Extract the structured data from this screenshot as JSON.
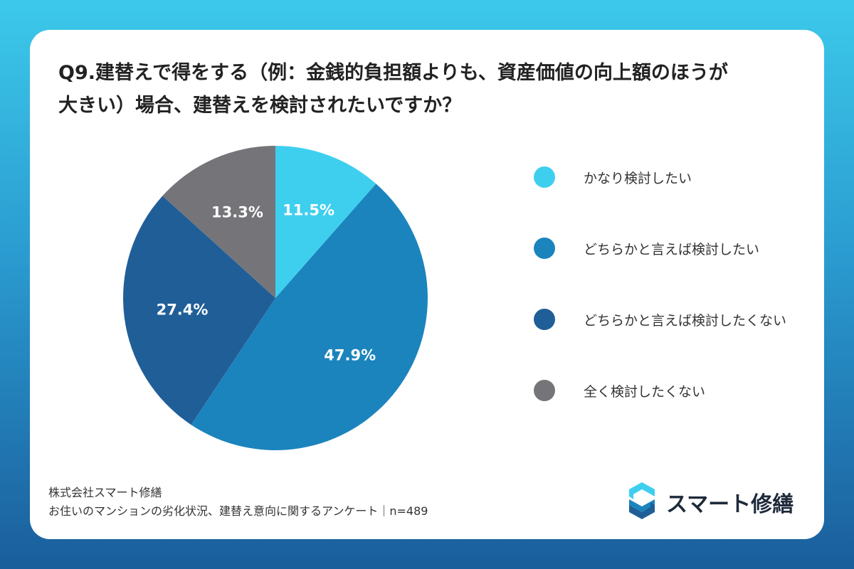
{
  "title_lines": [
    "Q9.建替えで得をする（例：金銭的負担額よりも、資産価値の向上額のほうが",
    "大きい）場合、建替えを検討されたいですか？"
  ],
  "chart_data": {
    "type": "pie",
    "categories": [
      "かなり検討したい",
      "どちらかと言えば検討したい",
      "どちらかと言えば検討したくない",
      "全く検討したくない"
    ],
    "values": [
      11.5,
      47.9,
      27.4,
      13.3
    ],
    "labels": [
      "11.5%",
      "47.9%",
      "27.4%",
      "13.3%"
    ],
    "colors": [
      "#3ecfef",
      "#1b84bd",
      "#205e98",
      "#757579"
    ],
    "legend_position": "right"
  },
  "footer": {
    "company": "株式会社スマート修繕",
    "survey": "お住いのマンションの劣化状況、建替え意向に関するアンケート｜n=489"
  },
  "brand": {
    "name": "スマート修繕",
    "icon": "s-logo-icon",
    "colors": [
      "#3ecfef",
      "#1b84bd",
      "#205e98"
    ]
  }
}
